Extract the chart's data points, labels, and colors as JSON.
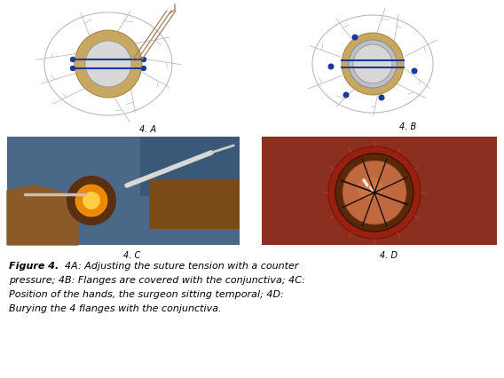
{
  "fig_width": 5.68,
  "fig_height": 4.27,
  "dpi": 100,
  "background_color": "#ffffff",
  "caption_bold": "Figure 4.",
  "caption_text": " 4A: Adjusting the suture tension with a counter pressure; 4B: Flanges are covered with the conjunctiva; 4C: Position of the hands, the surgeon sitting temporal; 4D: Burying the 4 flanges with the conjunctiva.",
  "label_4A": "4. A",
  "label_4B": "4. B",
  "label_4C": "4. C",
  "label_4D": "4. D",
  "suture_color": "#1a3a99",
  "dot_color": "#1a3a99",
  "eye_outer_edge": "#aaaaaa",
  "limbus_face": "#c8a860",
  "limbus_edge": "#a08040",
  "cornea_face": "#d8d8d8",
  "cornea_edge": "#999999",
  "vein_color": "#bbbbbb",
  "needle_color": "#a08060",
  "photo_C_bg": "#5a7090",
  "photo_C_skin1": "#8b5a28",
  "photo_C_skin2": "#7a4a18",
  "photo_C_blue": "#4a6888",
  "photo_C_orange": "#ee8800",
  "photo_D_bg": "#8b3020",
  "photo_D_red": "#aa2a18",
  "photo_D_iris": "#7a3010",
  "photo_D_cornea": "#c06840"
}
